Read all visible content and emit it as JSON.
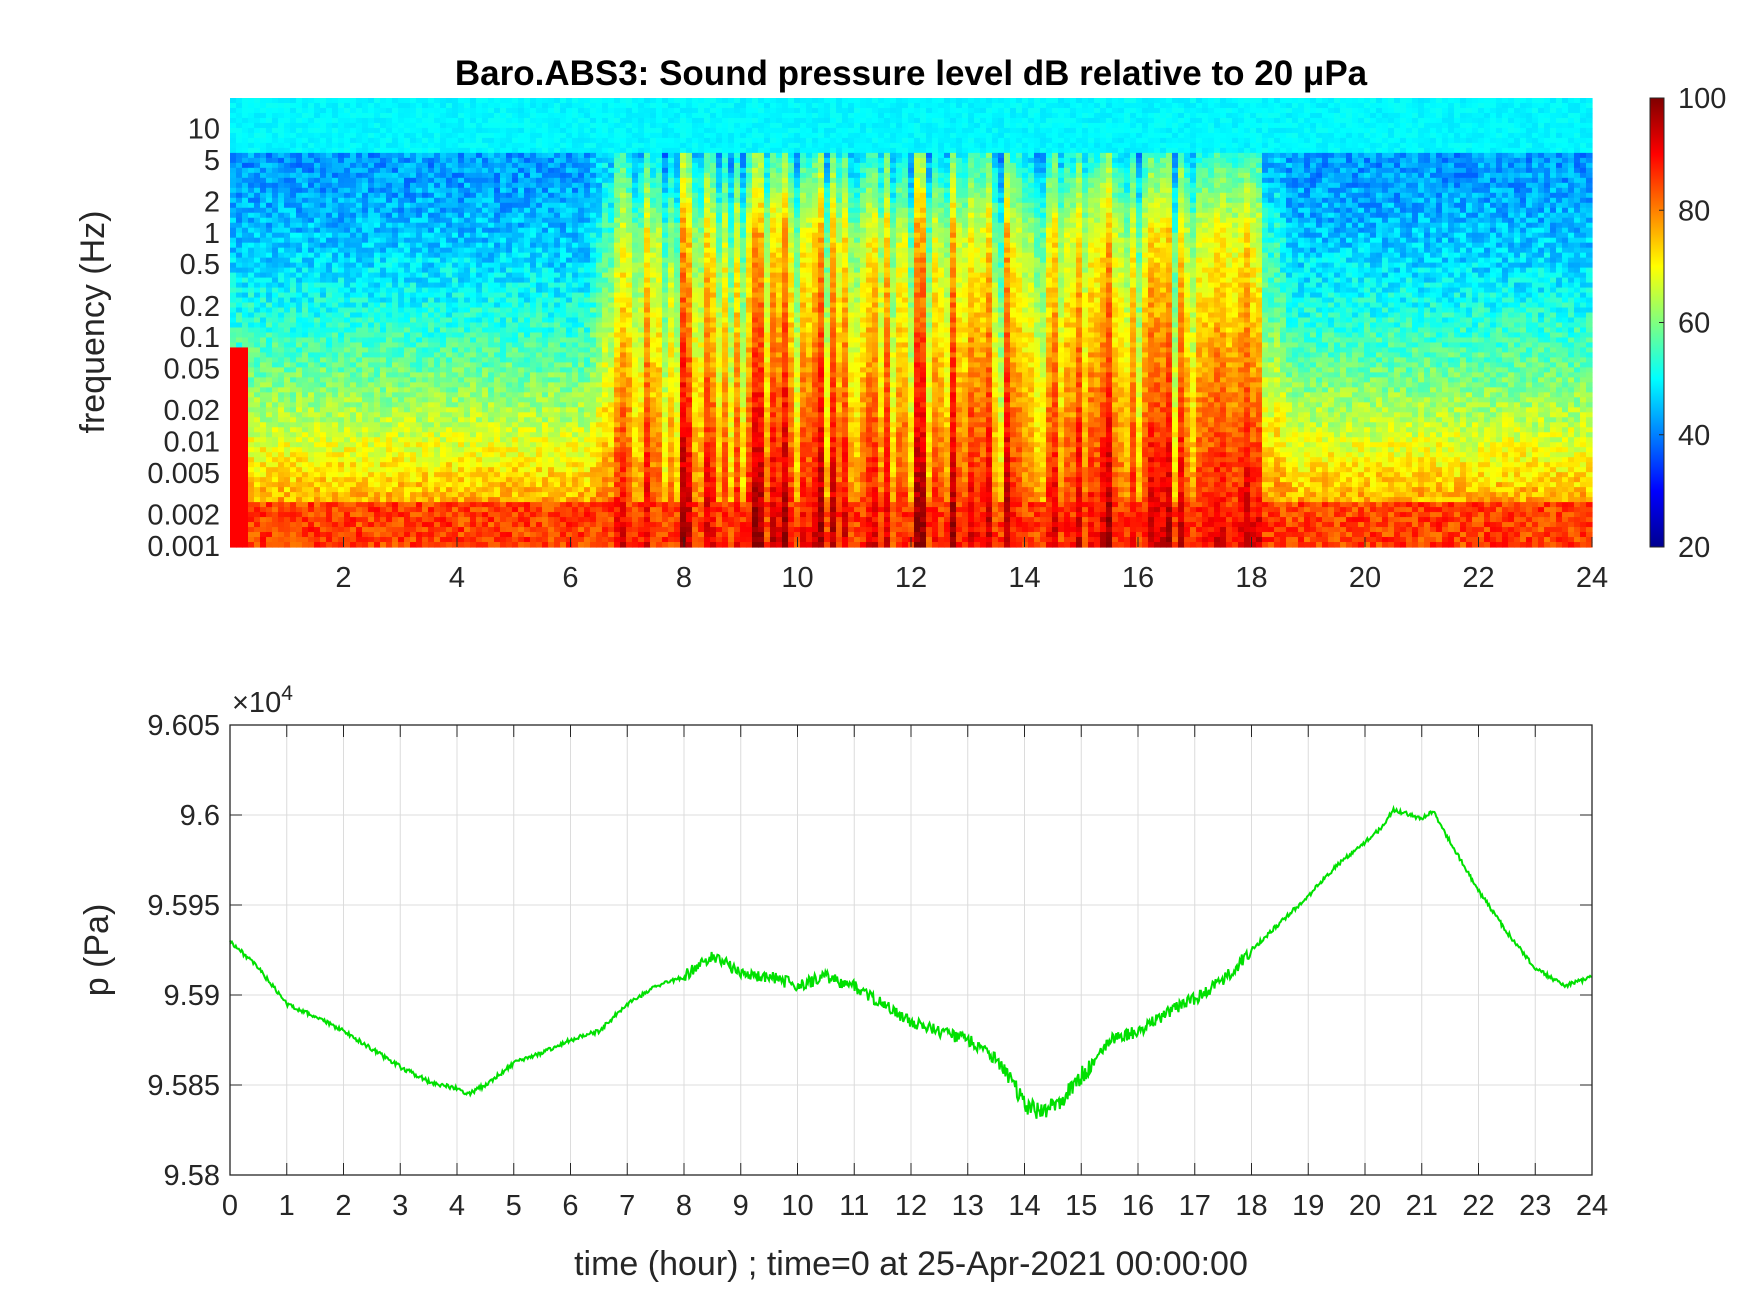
{
  "chart_data": [
    {
      "type": "heatmap",
      "title": "Baro.ABS3: Sound pressure level dB relative to 20 μPa",
      "ylabel": "frequency (Hz)",
      "x_ticks": [
        2,
        4,
        6,
        8,
        10,
        12,
        14,
        16,
        18,
        20,
        22,
        24
      ],
      "xlim": [
        0,
        24
      ],
      "y_scale": "log",
      "ylim": [
        0.001,
        20
      ],
      "y_ticks": [
        0.001,
        0.002,
        0.005,
        0.01,
        0.02,
        0.05,
        0.1,
        0.2,
        0.5,
        1,
        2,
        5,
        10
      ],
      "y_tick_labels": [
        "0.001",
        "0.002",
        "0.005",
        "0.01",
        "0.02",
        "0.05",
        "0.1",
        "0.2",
        "0.5",
        "1",
        "2",
        "5",
        "10"
      ],
      "colorbar": {
        "range": [
          20,
          100
        ],
        "ticks": [
          20,
          40,
          60,
          80,
          100
        ],
        "colormap": "jet"
      },
      "active_period_hours": [
        6.7,
        18.3
      ],
      "notes": "High SPL (red) at low frequencies all day; broadband energy up to ~10 Hz between about 7 h and 18 h."
    },
    {
      "type": "line",
      "ylabel": "p (Pa)",
      "xlabel": "time (hour) ; time=0 at 25-Apr-2021 00:00:00",
      "y_exponent_label": "×10",
      "y_exponent": "4",
      "xlim": [
        0,
        24
      ],
      "ylim": [
        9.58,
        9.605
      ],
      "x_ticks": [
        0,
        1,
        2,
        3,
        4,
        5,
        6,
        7,
        8,
        9,
        10,
        11,
        12,
        13,
        14,
        15,
        16,
        17,
        18,
        19,
        20,
        21,
        22,
        23,
        24
      ],
      "y_ticks": [
        9.58,
        9.585,
        9.59,
        9.595,
        9.6,
        9.605
      ],
      "y_tick_labels": [
        "9.58",
        "9.585",
        "9.59",
        "9.595",
        "9.6",
        "9.605"
      ],
      "grid": true,
      "color": "#00e000",
      "series": [
        {
          "x": [
            0,
            0.5,
            1,
            1.5,
            2,
            2.5,
            3,
            3.5,
            4,
            4.2,
            4.5,
            5,
            5.5,
            6,
            6.5,
            7,
            7.5,
            8,
            8.5,
            9,
            9.5,
            10,
            10.5,
            11,
            11.5,
            12,
            12.5,
            13,
            13.5,
            14,
            14.3,
            14.6,
            15,
            15.5,
            16,
            16.5,
            17,
            17.5,
            18,
            18.5,
            19,
            19.5,
            20,
            20.3,
            20.5,
            21,
            21.2,
            21.5,
            22,
            22.5,
            23,
            23.5,
            24
          ],
          "y": [
            9.593,
            9.5915,
            9.5895,
            9.5888,
            9.588,
            9.587,
            9.586,
            9.5852,
            9.5848,
            9.5845,
            9.585,
            9.5862,
            9.5868,
            9.5875,
            9.588,
            9.5895,
            9.5905,
            9.591,
            9.5922,
            9.5912,
            9.591,
            9.5905,
            9.591,
            9.5905,
            9.5895,
            9.5885,
            9.588,
            9.5875,
            9.5865,
            9.584,
            9.5835,
            9.584,
            9.5855,
            9.5875,
            9.588,
            9.589,
            9.5898,
            9.5908,
            9.5925,
            9.594,
            9.5955,
            9.5972,
            9.5985,
            9.5993,
            9.6003,
            9.5998,
            9.6002,
            9.5985,
            9.5958,
            9.5935,
            9.5915,
            9.5905,
            9.591
          ]
        }
      ]
    }
  ]
}
